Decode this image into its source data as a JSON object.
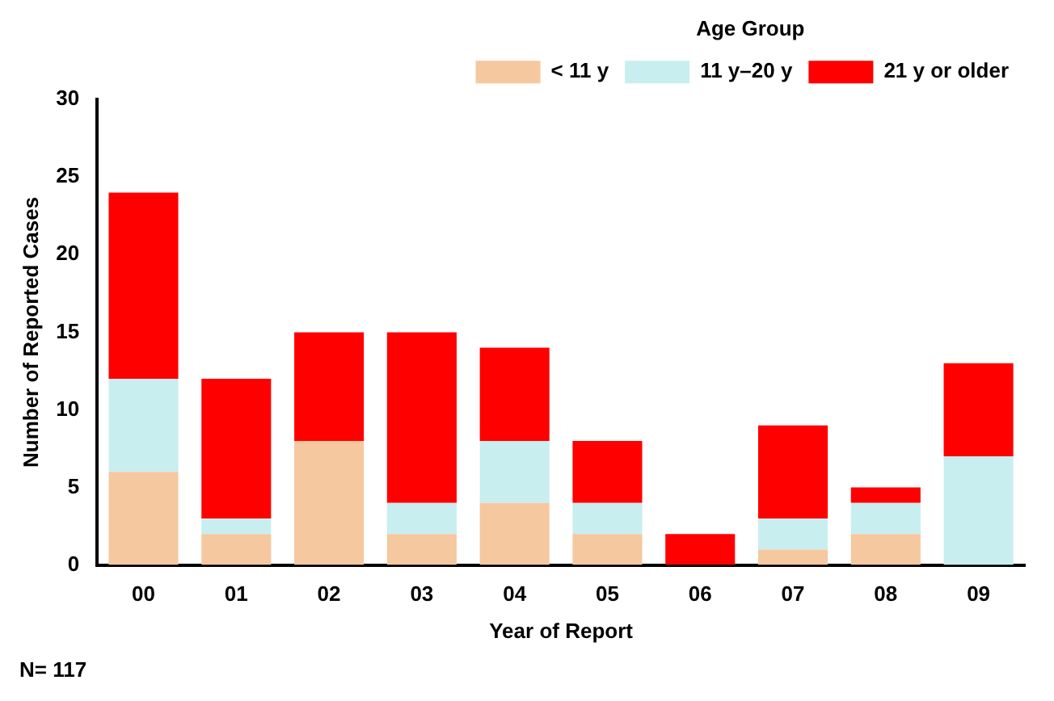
{
  "chart_data": {
    "type": "bar",
    "stacked": true,
    "xlabel": "Year of Report",
    "ylabel": "Number of Reported Cases",
    "legend_title": "Age Group",
    "legend": "top right",
    "grid": false,
    "categories": [
      "00",
      "01",
      "02",
      "03",
      "04",
      "05",
      "06",
      "07",
      "08",
      "09"
    ],
    "series": [
      {
        "name": "< 11 y",
        "color": "#f5c8a0",
        "values": [
          6,
          2,
          8,
          2,
          4,
          2,
          0,
          1,
          2,
          0
        ]
      },
      {
        "name": "11 y–20 y",
        "color": "#c8eef0",
        "values": [
          6,
          1,
          0,
          2,
          4,
          2,
          0,
          2,
          2,
          7
        ]
      },
      {
        "name": "21 y or older",
        "color": "#ff0000",
        "values": [
          12,
          9,
          7,
          11,
          6,
          4,
          2,
          6,
          1,
          6
        ]
      }
    ],
    "ylim": [
      0,
      30
    ],
    "yticks": [
      0,
      5,
      10,
      15,
      20,
      25,
      30
    ],
    "annotations": [
      "N= 117"
    ]
  }
}
